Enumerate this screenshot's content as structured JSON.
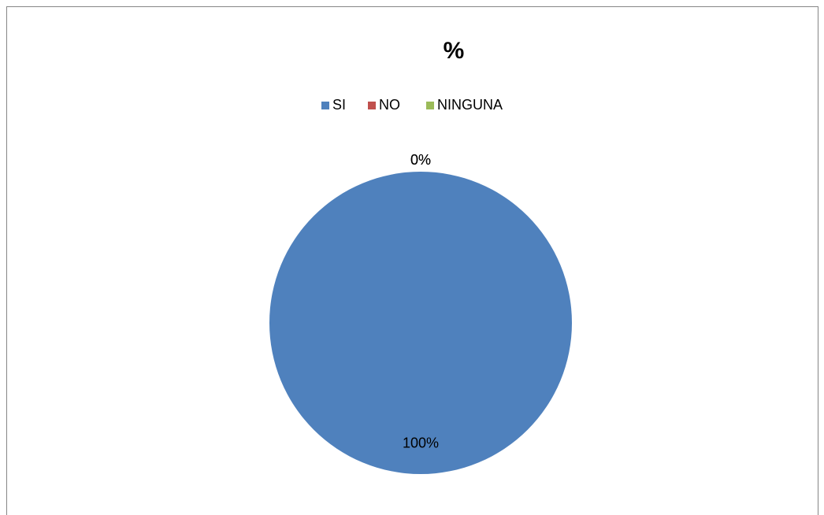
{
  "chart_data": {
    "type": "pie",
    "title": "%",
    "categories": [
      "SI",
      "NO",
      "NINGUNA"
    ],
    "values": [
      100,
      0,
      0
    ],
    "value_labels": [
      "100%",
      "0%",
      "0%"
    ],
    "colors": [
      "#4f81bd",
      "#c0504d",
      "#9bbb59"
    ],
    "legend": "top"
  }
}
